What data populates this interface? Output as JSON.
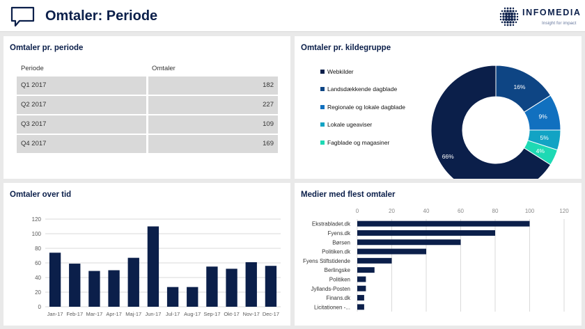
{
  "header": {
    "title": "Omtaler: Periode"
  },
  "logo": {
    "brand": "INFOMEDIA",
    "tagline": "Insight for impact"
  },
  "period_panel": {
    "title": "Omtaler pr. periode",
    "columns": [
      "Periode",
      "Omtaler"
    ],
    "rows": [
      {
        "period": "Q1 2017",
        "count": "182"
      },
      {
        "period": "Q2 2017",
        "count": "227"
      },
      {
        "period": "Q3 2017",
        "count": "109"
      },
      {
        "period": "Q4 2017",
        "count": "169"
      }
    ]
  },
  "source_panel": {
    "title": "Omtaler pr. kildegruppe"
  },
  "time_panel": {
    "title": "Omtaler over tid"
  },
  "media_panel": {
    "title": "Medier med flest omtaler"
  },
  "chart_data": [
    {
      "type": "pie",
      "categories": [
        "Webkilder",
        "Landsdækkende dagblade",
        "Regionale og lokale dagblade",
        "Lokale ugeaviser",
        "Fagblade og magasiner"
      ],
      "values": [
        66,
        16,
        9,
        5,
        4
      ],
      "labels": [
        "66%",
        "16%",
        "9%",
        "5%",
        "4%"
      ],
      "colors": [
        "#0b1f4a",
        "#0e4584",
        "#1170bf",
        "#12a3c4",
        "#1ed9b4"
      ],
      "legend": "left"
    },
    {
      "type": "bar",
      "categories": [
        "Jan-17",
        "Feb-17",
        "Mar-17",
        "Apr-17",
        "Maj-17",
        "Jun-17",
        "Jul-17",
        "Aug-17",
        "Sep-17",
        "Okt-17",
        "Nov-17",
        "Dec-17"
      ],
      "values": [
        74,
        59,
        49,
        50,
        67,
        110,
        27,
        27,
        55,
        52,
        61,
        56
      ],
      "ylim": [
        0,
        120
      ],
      "yticks": [
        0,
        20,
        40,
        60,
        80,
        100,
        120
      ],
      "grid": true,
      "color": "#0b1f4a"
    },
    {
      "type": "bar",
      "orientation": "horizontal",
      "categories": [
        "Ekstrabladet.dk",
        "Fyens.dk",
        "Børsen",
        "Politiken.dk",
        "Fyens Stiftstidende",
        "Berlingske",
        "Politiken",
        "Jyllands-Posten",
        "Finans.dk",
        "Licitationen -..."
      ],
      "values": [
        100,
        80,
        60,
        40,
        20,
        10,
        5,
        5,
        4,
        4
      ],
      "xlim": [
        0,
        120
      ],
      "xticks": [
        0,
        20,
        40,
        60,
        80,
        100,
        120
      ],
      "grid": true,
      "color": "#0b1f4a"
    }
  ]
}
